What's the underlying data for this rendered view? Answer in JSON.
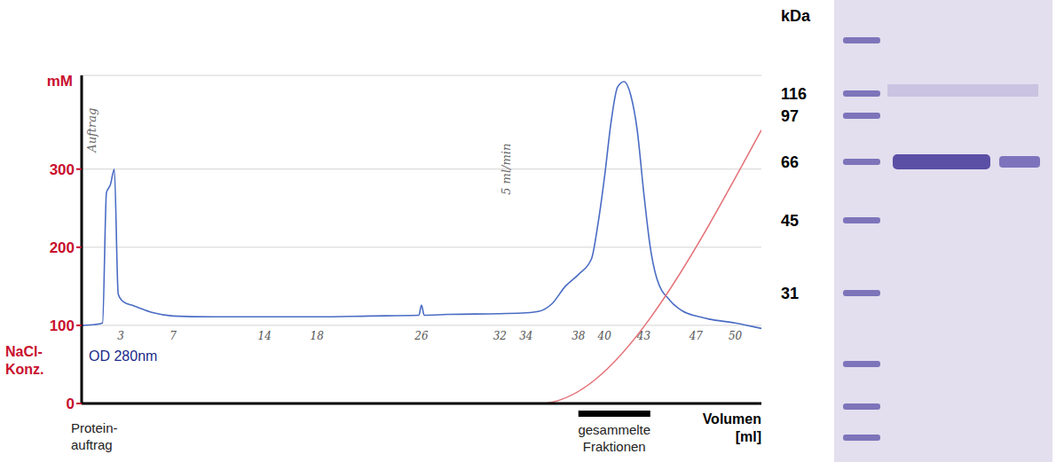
{
  "chart_data": {
    "type": "line",
    "y_unit": "mM",
    "x_label": "Volumen [ml]",
    "xlim": [
      0,
      52
    ],
    "ylim": [
      0,
      420
    ],
    "yticks": [
      0,
      100,
      200,
      300
    ],
    "tick_labels": "y",
    "grid": true,
    "series": [
      {
        "name": "OD 280nm",
        "color": "#4a6cc4",
        "x": [
          0,
          1,
          1.6,
          1.9,
          2.2,
          2.5,
          2.8,
          3.2,
          4,
          5.5,
          7,
          10,
          14,
          18,
          22,
          25.8,
          26,
          26.2,
          28,
          32,
          34,
          35,
          36,
          37,
          38,
          39,
          39.5,
          40,
          40.5,
          41,
          41.5,
          42,
          42.5,
          43,
          43.5,
          44,
          45,
          46,
          47,
          48,
          50,
          52
        ],
        "values": [
          100,
          101,
          103,
          270,
          280,
          300,
          140,
          130,
          125,
          116,
          112,
          111,
          111,
          111,
          112,
          113,
          126,
          113,
          114,
          115,
          116,
          118,
          128,
          150,
          165,
          185,
          230,
          290,
          360,
          405,
          412,
          395,
          350,
          270,
          200,
          160,
          132,
          118,
          112,
          108,
          103,
          96
        ]
      },
      {
        "name": "NaCl-Konz.",
        "color": "#e4747a",
        "x": [
          0,
          35,
          52
        ],
        "values": [
          0,
          0,
          350
        ]
      }
    ],
    "annotations": [
      {
        "text": "Auftrag",
        "x": 0.8,
        "y": 350
      },
      {
        "text": "5 ml/min",
        "x": 32.5,
        "y": 300
      }
    ],
    "volume_marks": [
      3,
      7,
      14,
      18,
      26,
      32,
      34,
      38,
      40,
      43,
      47,
      50
    ],
    "load_label": "Protein-auftrag",
    "collected_fractions": {
      "label": "gesammelte Fraktionen",
      "from": 38,
      "to": 43.5
    }
  },
  "gel": {
    "unit": "kDa",
    "markers": [
      116,
      97,
      66,
      45,
      31
    ],
    "sample_band": 66
  }
}
